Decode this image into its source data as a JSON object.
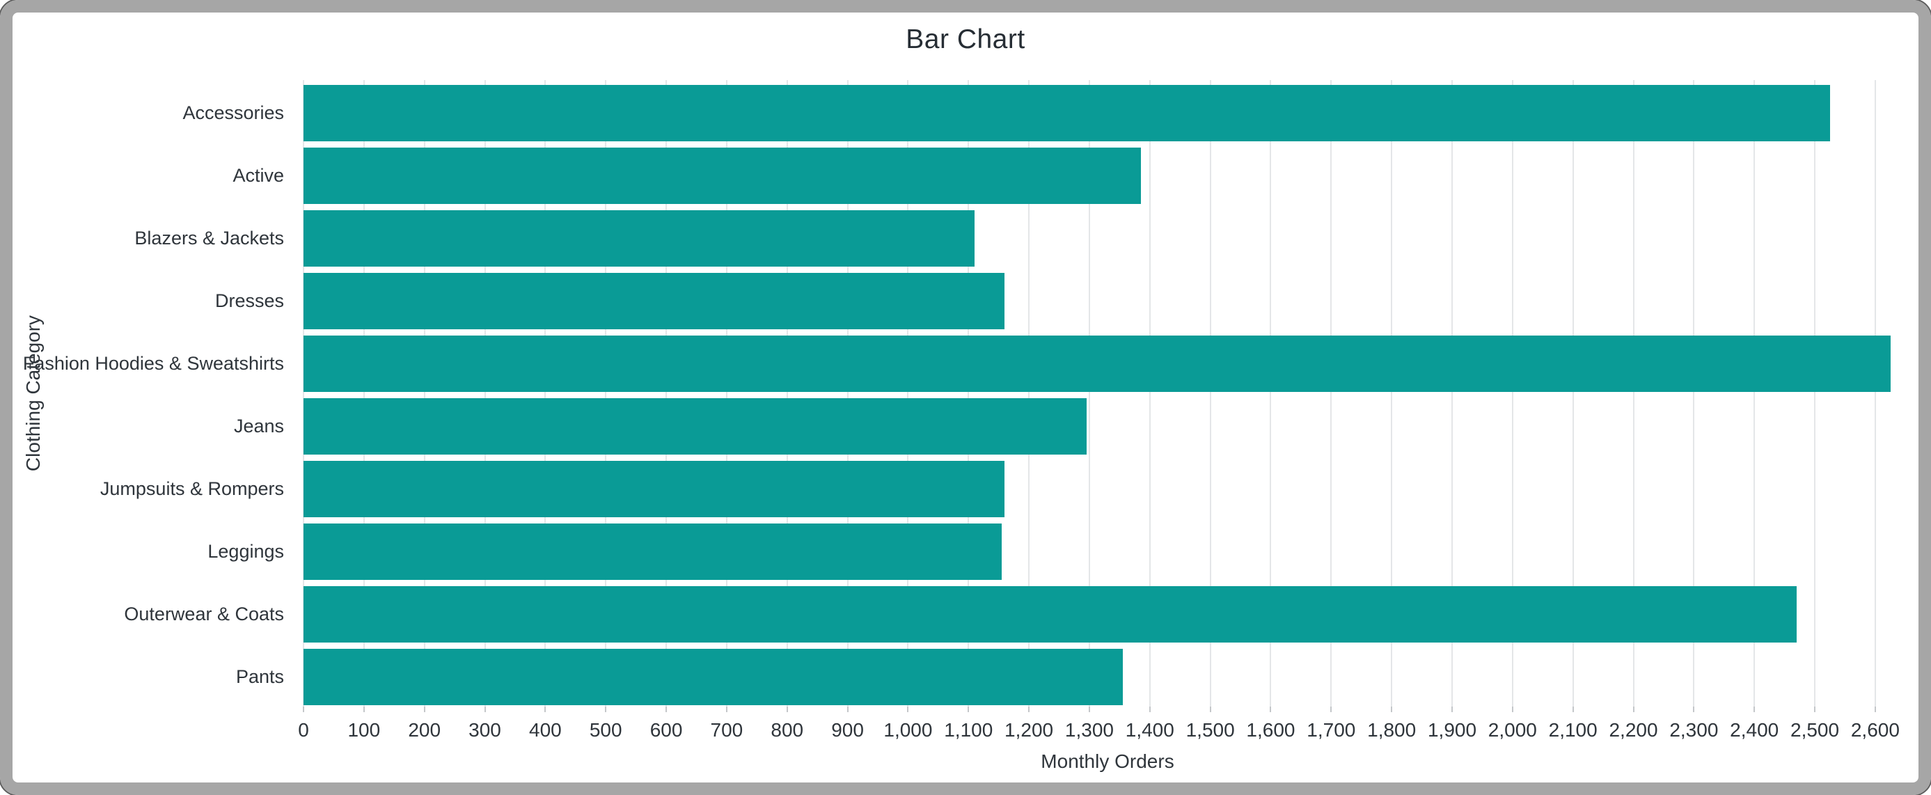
{
  "chart_window": {
    "frame_color": "#a6a6a6",
    "background_color": "#ffffff"
  },
  "chart_data": {
    "type": "bar",
    "orientation": "horizontal",
    "title": "Bar Chart",
    "xlabel": "Monthly Orders",
    "ylabel": "Clothing Category",
    "categories": [
      "Accessories",
      "Active",
      "Blazers & Jackets",
      "Dresses",
      "Fashion Hoodies & Sweatshirts",
      "Jeans",
      "Jumpsuits & Rompers",
      "Leggings",
      "Outerwear & Coats",
      "Pants"
    ],
    "values": [
      2525,
      1385,
      1110,
      1160,
      2625,
      1295,
      1160,
      1155,
      2470,
      1355
    ],
    "xlim": [
      0,
      2660
    ],
    "x_tick_interval": 100,
    "x_tick_last": 2600,
    "number_format": "comma-thousands",
    "grid": "vertical-only",
    "legend": "none",
    "bar_color": "#0a9b96",
    "gridline_color": "#e4e6e8",
    "tick_mark_color": "#c4c7ca",
    "axis_text_color": "#2f353b",
    "title_color": "#262d34"
  }
}
